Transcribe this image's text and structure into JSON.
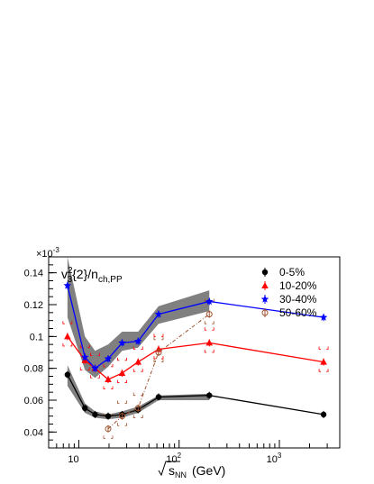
{
  "chart_data": {
    "type": "line",
    "title": "",
    "multiplier_label": "×10",
    "multiplier_exp": "-3",
    "plot_label_main": "v",
    "plot_label_sup": "2",
    "plot_label_sub3": "3",
    "plot_label_mid": "{2}/n",
    "plot_label_sub": "ch,PP",
    "xlabel_main": "s",
    "xlabel_sub": "NN",
    "xlabel_unit": "(GeV)",
    "x_scale": "log",
    "xlim": [
      5,
      4000
    ],
    "ylim": [
      0.03,
      0.15
    ],
    "y_ticks": [
      "0.04",
      "0.06",
      "0.08",
      "0.1",
      "0.12",
      "0.14"
    ],
    "x_ticks": [
      "10",
      "10",
      "10"
    ],
    "x_tick_exps": [
      "",
      "2",
      "3"
    ],
    "legend_position": "top-right",
    "series": [
      {
        "name": "0-5%",
        "color": "#000000",
        "marker": "circle",
        "x": [
          7.7,
          11.5,
          14.5,
          19.6,
          27,
          39,
          62.4,
          200,
          2760
        ],
        "y": [
          0.076,
          0.055,
          0.051,
          0.05,
          0.051,
          0.054,
          0.062,
          0.063,
          0.051
        ],
        "band_low": [
          0.069,
          0.052,
          0.049,
          0.048,
          0.049,
          0.052,
          0.06,
          0.06,
          null
        ],
        "band_high": [
          0.082,
          0.058,
          0.053,
          0.051,
          0.053,
          0.056,
          0.063,
          0.064,
          null
        ]
      },
      {
        "name": "10-20%",
        "color": "#ff0000",
        "marker": "triangle",
        "x": [
          7.7,
          11.5,
          14.5,
          19.6,
          27,
          39,
          62.4,
          200,
          2760
        ],
        "y": [
          0.1,
          0.085,
          0.08,
          0.073,
          0.077,
          0.084,
          0.092,
          0.096,
          0.084
        ],
        "band_low": null,
        "band_high": null
      },
      {
        "name": "30-40%",
        "color": "#0000ff",
        "marker": "star",
        "x": [
          7.7,
          11.5,
          14.5,
          19.6,
          27,
          39,
          62.4,
          200,
          2760
        ],
        "y": [
          0.132,
          0.087,
          0.08,
          0.086,
          0.096,
          0.097,
          0.114,
          0.122,
          0.112
        ],
        "band_low": [
          0.112,
          0.079,
          0.074,
          0.081,
          0.091,
          0.093,
          0.108,
          0.116,
          null
        ],
        "band_high": [
          0.15,
          0.1,
          0.091,
          0.095,
          0.103,
          0.103,
          0.119,
          0.129,
          null
        ]
      },
      {
        "name": "50-60%",
        "color": "#a0522d",
        "marker": "open-circle",
        "x": [
          19.6,
          27,
          39,
          62.4,
          200
        ],
        "y": [
          0.042,
          0.05,
          0.055,
          0.09,
          0.114
        ],
        "band_low": null,
        "band_high": null
      }
    ]
  }
}
